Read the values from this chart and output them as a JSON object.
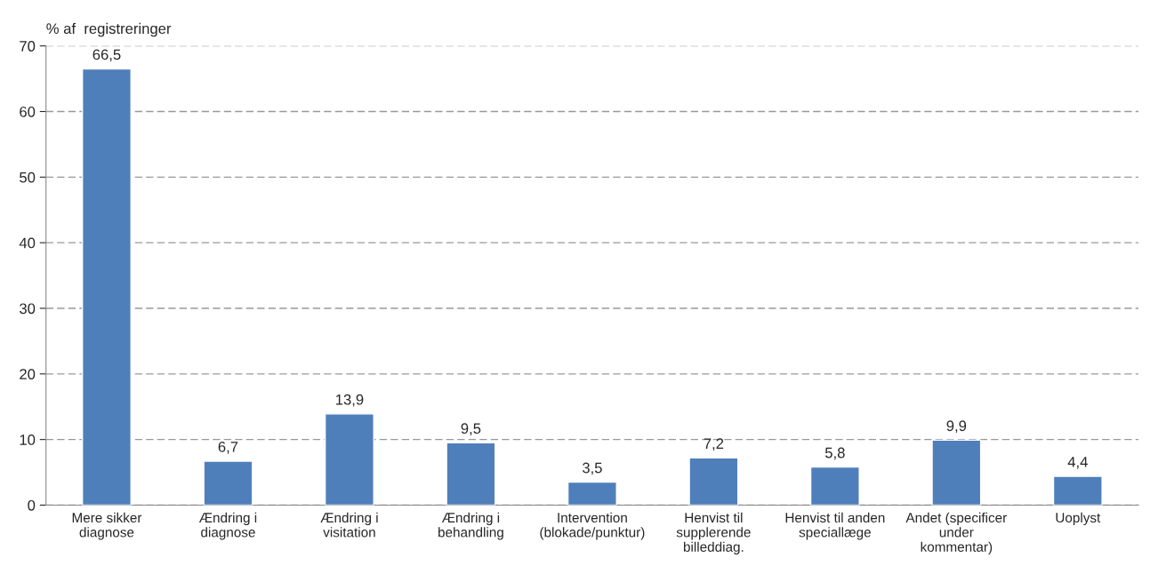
{
  "chart_data": {
    "type": "bar",
    "ylabel": "% af  registreringer",
    "categories": [
      "Mere sikker\ndiagnose",
      "Ændring i\ndiagnose",
      "Ændring i\nvisitation",
      "Ændring i\nbehandling",
      "Intervention\n(blokade/punktur)",
      "Henvist til\nsupplerende\nbilleddiag.",
      "Henvist til anden\nspeciallæge",
      "Andet (specificer\nunder\nkommentar)",
      "Uoplyst"
    ],
    "values": [
      66.5,
      6.7,
      13.9,
      9.5,
      3.5,
      7.2,
      5.8,
      9.9,
      4.4
    ],
    "color": "#4f7fba",
    "ylim": [
      0,
      70
    ],
    "yticks": [
      0,
      10,
      20,
      30,
      40,
      50,
      60,
      70
    ],
    "grid": "y",
    "data_labels": true,
    "value_labels": [
      "66,5",
      "6,7",
      "13,9",
      "9,5",
      "3,5",
      "7,2",
      "5,8",
      "9,9",
      "4,4"
    ]
  }
}
